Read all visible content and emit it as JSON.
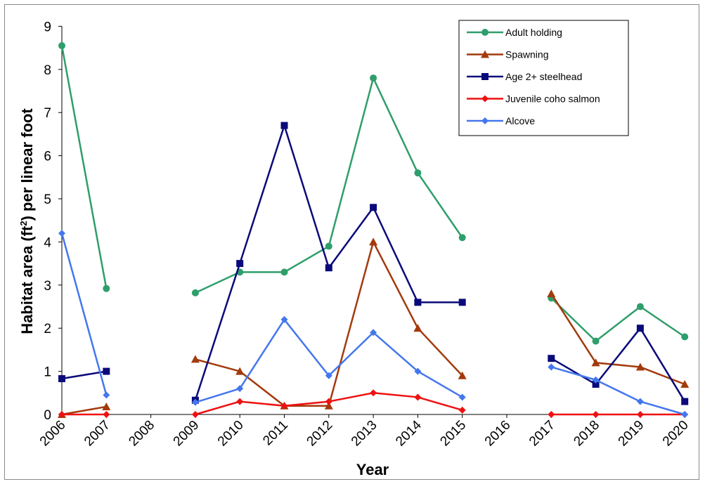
{
  "chart_data": {
    "type": "line",
    "categories": [
      "2006",
      "2007",
      "2008",
      "2009",
      "2010",
      "2011",
      "2012",
      "2013",
      "2014",
      "2015",
      "2016",
      "2017",
      "2018",
      "2019",
      "2020"
    ],
    "xlabel": "Year",
    "ylabel_prefix": "Habitat area (ft",
    "ylabel_sup": "2",
    "ylabel_suffix": ") per linear foot",
    "ylim": [
      0,
      9
    ],
    "yticks": [
      "0",
      "1",
      "2",
      "3",
      "4",
      "5",
      "6",
      "7",
      "8",
      "9"
    ],
    "grid": false,
    "legend_position": "top-right",
    "series": [
      {
        "name": "Adult holding",
        "color": "#2e9e6b",
        "marker": "circle",
        "values": [
          8.55,
          2.92,
          null,
          2.82,
          3.3,
          3.3,
          3.9,
          7.8,
          5.6,
          4.1,
          null,
          2.7,
          1.7,
          2.5,
          1.8
        ]
      },
      {
        "name": "Spawning",
        "color": "#a33a0c",
        "marker": "triangle",
        "values": [
          0.0,
          0.18,
          null,
          1.28,
          1.0,
          0.2,
          0.2,
          4.0,
          2.0,
          0.9,
          null,
          2.8,
          1.2,
          1.1,
          0.7
        ]
      },
      {
        "name": "Age 2+ steelhead",
        "color": "#0a0a7a",
        "marker": "square",
        "values": [
          0.83,
          1.0,
          null,
          0.33,
          3.5,
          6.7,
          3.4,
          4.8,
          2.6,
          2.6,
          null,
          1.3,
          0.7,
          2.0,
          0.3
        ]
      },
      {
        "name": "Juvenile coho salmon",
        "color": "#ee1111",
        "marker": "diamond",
        "values": [
          0.0,
          0.0,
          null,
          0.0,
          0.3,
          0.2,
          0.3,
          0.5,
          0.4,
          0.1,
          null,
          0.0,
          0.0,
          0.0,
          0.0
        ]
      },
      {
        "name": "Alcove",
        "color": "#4477ee",
        "marker": "diamond",
        "values": [
          4.2,
          0.45,
          null,
          0.28,
          0.6,
          2.2,
          0.9,
          1.9,
          1.0,
          0.4,
          null,
          1.1,
          0.8,
          0.3,
          0.0
        ]
      }
    ]
  }
}
